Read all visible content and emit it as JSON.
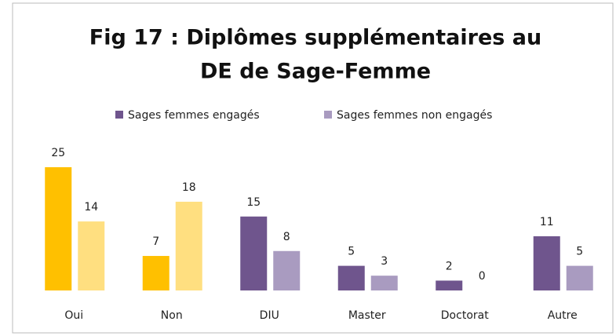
{
  "chart_data": {
    "type": "bar",
    "title": [
      "Fig 17 : Diplômes supplémentaires au",
      "DE de Sage-Femme"
    ],
    "categories": [
      "Oui",
      "Non",
      "DIU",
      "Master",
      "Doctorat",
      "Autre"
    ],
    "series": [
      {
        "name": "Sages femmes engagés",
        "color": "#6f558d",
        "colors": [
          "#ffc000",
          "#ffc000",
          "#6f558d",
          "#6f558d",
          "#6f558d",
          "#6f558d"
        ],
        "values": [
          25,
          7,
          15,
          5,
          2,
          11
        ]
      },
      {
        "name": "Sages femmes non engagés",
        "color": "#a99bc0",
        "colors": [
          "#ffdf80",
          "#ffdf80",
          "#a99bc0",
          "#a99bc0",
          "#a99bc0",
          "#a99bc0"
        ],
        "values": [
          14,
          18,
          8,
          3,
          0,
          5
        ]
      }
    ],
    "legend": "top",
    "data_labels": true
  }
}
